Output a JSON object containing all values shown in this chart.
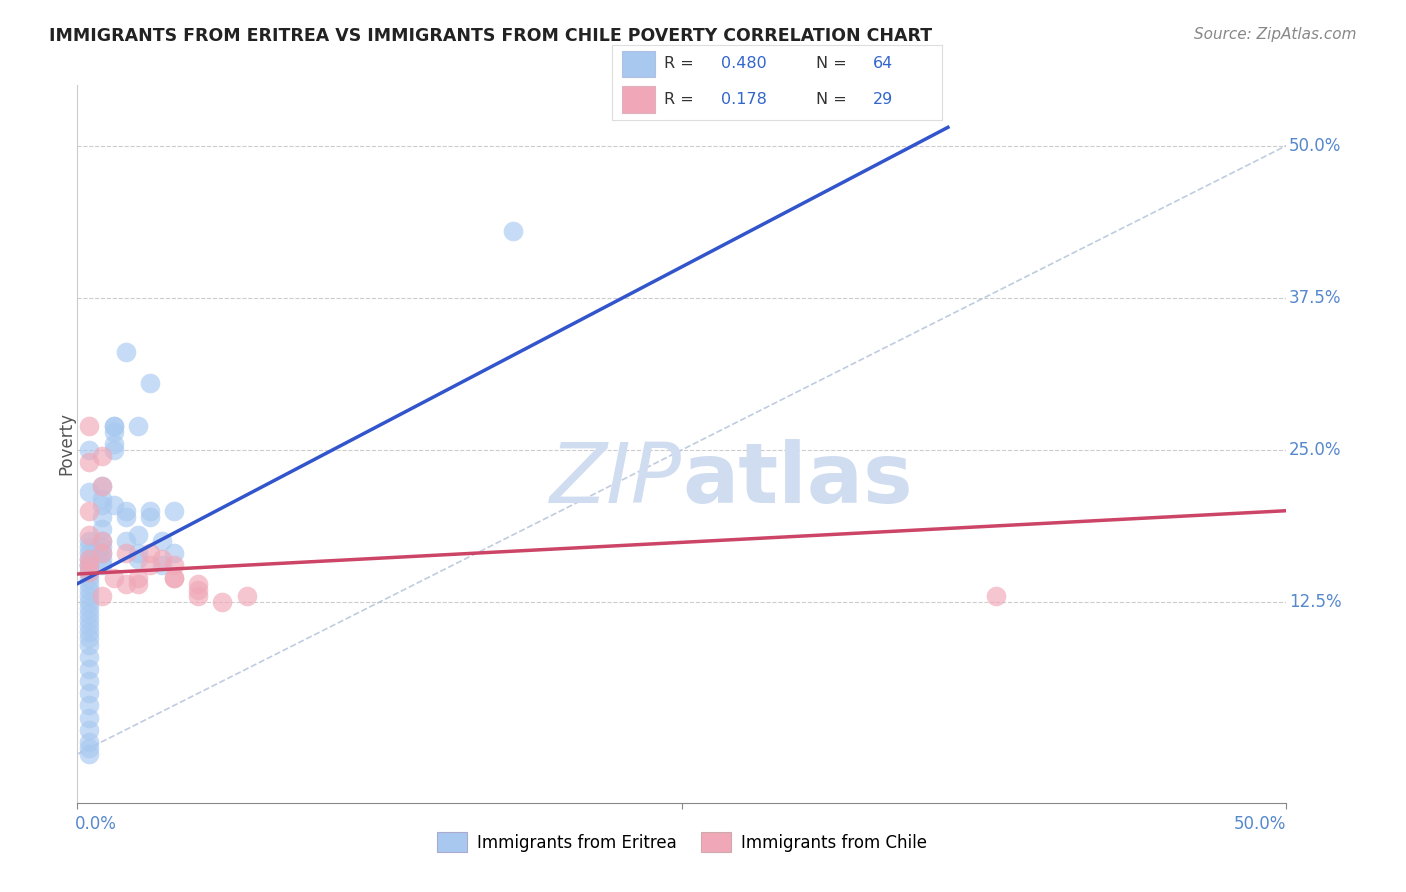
{
  "title": "IMMIGRANTS FROM ERITREA VS IMMIGRANTS FROM CHILE POVERTY CORRELATION CHART",
  "source": "Source: ZipAtlas.com",
  "ylabel": "Poverty",
  "ytick_labels": [
    "50.0%",
    "37.5%",
    "25.0%",
    "12.5%"
  ],
  "ytick_values": [
    0.5,
    0.375,
    0.25,
    0.125
  ],
  "xmin": 0.0,
  "xmax": 0.5,
  "ymin": -0.04,
  "ymax": 0.55,
  "legend_eritrea_R": "0.480",
  "legend_eritrea_N": "64",
  "legend_chile_R": "0.178",
  "legend_chile_N": "29",
  "eritrea_color": "#a8c8f0",
  "chile_color": "#f0a8b8",
  "eritrea_line_color": "#3355cc",
  "chile_line_color": "#cc4466",
  "dashed_line_color": "#b0c0d8",
  "watermark_zip": "ZIP",
  "watermark_atlas": "atlas",
  "watermark_color": "#d0ddf0",
  "eritrea_scatter_x": [
    0.005,
    0.005,
    0.005,
    0.005,
    0.005,
    0.005,
    0.005,
    0.005,
    0.005,
    0.005,
    0.005,
    0.005,
    0.005,
    0.005,
    0.005,
    0.005,
    0.005,
    0.005,
    0.005,
    0.005,
    0.005,
    0.005,
    0.005,
    0.005,
    0.005,
    0.005,
    0.005,
    0.005,
    0.005,
    0.005,
    0.01,
    0.01,
    0.01,
    0.01,
    0.01,
    0.01,
    0.01,
    0.01,
    0.01,
    0.01,
    0.015,
    0.015,
    0.015,
    0.015,
    0.015,
    0.015,
    0.02,
    0.02,
    0.02,
    0.02,
    0.025,
    0.025,
    0.025,
    0.025,
    0.03,
    0.03,
    0.03,
    0.035,
    0.035,
    0.04,
    0.04,
    0.18,
    0.005,
    0.005
  ],
  "eritrea_scatter_y": [
    0.17,
    0.165,
    0.16,
    0.155,
    0.155,
    0.15,
    0.15,
    0.145,
    0.14,
    0.135,
    0.13,
    0.125,
    0.12,
    0.115,
    0.11,
    0.105,
    0.1,
    0.095,
    0.09,
    0.08,
    0.07,
    0.06,
    0.05,
    0.04,
    0.03,
    0.02,
    0.01,
    0.005,
    0.0,
    0.175,
    0.205,
    0.195,
    0.185,
    0.175,
    0.17,
    0.165,
    0.16,
    0.155,
    0.22,
    0.21,
    0.265,
    0.255,
    0.25,
    0.27,
    0.27,
    0.205,
    0.2,
    0.195,
    0.175,
    0.33,
    0.27,
    0.18,
    0.165,
    0.16,
    0.305,
    0.2,
    0.195,
    0.175,
    0.155,
    0.2,
    0.165,
    0.43,
    0.25,
    0.215
  ],
  "chile_scatter_x": [
    0.005,
    0.005,
    0.005,
    0.005,
    0.01,
    0.01,
    0.01,
    0.01,
    0.015,
    0.02,
    0.02,
    0.025,
    0.025,
    0.03,
    0.03,
    0.035,
    0.04,
    0.04,
    0.04,
    0.05,
    0.05,
    0.05,
    0.06,
    0.07,
    0.38,
    0.005,
    0.005,
    0.005,
    0.01
  ],
  "chile_scatter_y": [
    0.27,
    0.24,
    0.2,
    0.155,
    0.245,
    0.22,
    0.175,
    0.165,
    0.145,
    0.165,
    0.14,
    0.145,
    0.14,
    0.165,
    0.155,
    0.16,
    0.155,
    0.145,
    0.145,
    0.14,
    0.135,
    0.13,
    0.125,
    0.13,
    0.13,
    0.18,
    0.16,
    0.15,
    0.13
  ],
  "eritrea_trend_x": [
    0.0,
    0.36
  ],
  "eritrea_trend_y": [
    0.14,
    0.515
  ],
  "chile_trend_x": [
    0.0,
    0.5
  ],
  "chile_trend_y": [
    0.148,
    0.2
  ],
  "dashed_line_x": [
    0.0,
    0.5
  ],
  "dashed_line_y": [
    0.0,
    0.5
  ]
}
